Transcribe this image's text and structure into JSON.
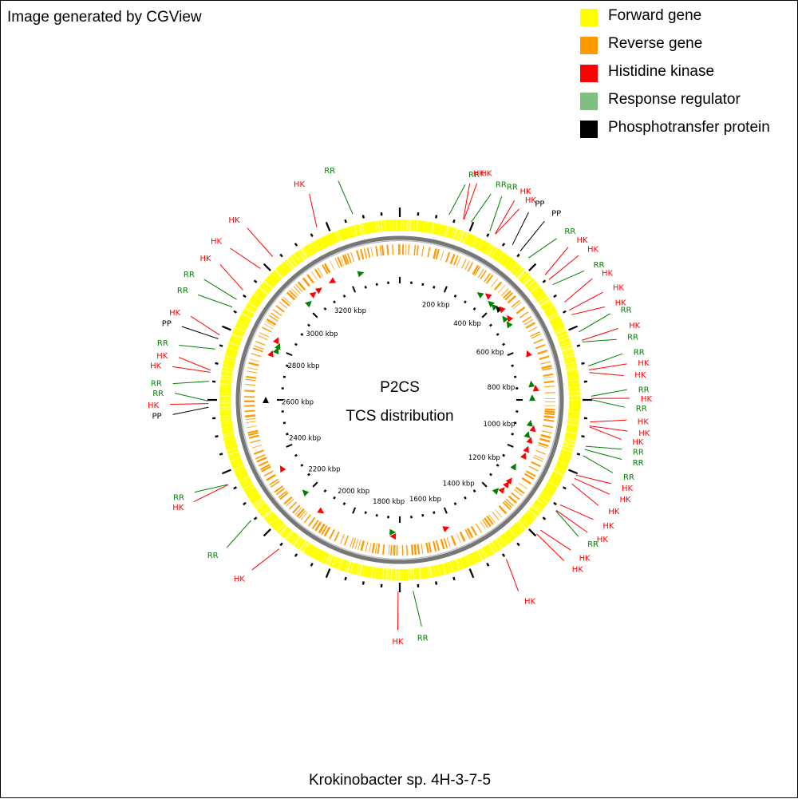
{
  "credit": "Image generated by CGView",
  "organism": "Krokinobacter sp. 4H-3-7-5",
  "center": {
    "line1": "P2CS",
    "line2": "TCS distribution"
  },
  "legend": [
    {
      "label": "Forward gene",
      "color": "#ffff00"
    },
    {
      "label": "Reverse gene",
      "color": "#ff9a00"
    },
    {
      "label": "Histidine kinase",
      "color": "#ff0000"
    },
    {
      "label": "Response regulator",
      "color": "#7fbf7f"
    },
    {
      "label": "Phosphotransfer protein",
      "color": "#000000"
    }
  ],
  "colors": {
    "HK": "#ff0000",
    "RR": "#008000",
    "PP": "#000000",
    "forward": "#ffff00",
    "reverse": "#ff9a00",
    "backbone": "#808080"
  },
  "kbp_labels": [
    "200 kbp",
    "400 kbp",
    "600 kbp",
    "800 kbp",
    "1000 kbp",
    "1200 kbp",
    "1400 kbp",
    "1600 kbp",
    "1800 kbp",
    "2000 kbp",
    "2200 kbp",
    "2400 kbp",
    "2600 kbp",
    "2800 kbp",
    "3000 kbp",
    "3200 kbp"
  ],
  "feature_labels": [
    {
      "text": "RR",
      "type": "RR",
      "angle": 16.9
    },
    {
      "text": "HK",
      "type": "HK",
      "angle": 17.9
    },
    {
      "text": "HK",
      "type": "HK",
      "angle": 19.6
    },
    {
      "text": "RR",
      "type": "RR",
      "angle": 23.9
    },
    {
      "text": "RR",
      "type": "RR",
      "angle": 26.6
    },
    {
      "text": "HK",
      "type": "HK",
      "angle": 29.9
    },
    {
      "text": "HK",
      "type": "HK",
      "angle": 32.0
    },
    {
      "text": "PP",
      "type": "PP",
      "angle": 34.5
    },
    {
      "text": "PP",
      "type": "PP",
      "angle": 39.0
    },
    {
      "text": "RR",
      "type": "RR",
      "angle": 44.2
    },
    {
      "text": "HK",
      "type": "HK",
      "angle": 47.8
    },
    {
      "text": "HK",
      "type": "HK",
      "angle": 51.1
    },
    {
      "text": "RR",
      "type": "RR",
      "angle": 55.0
    },
    {
      "text": "HK",
      "type": "HK",
      "angle": 57.8
    },
    {
      "text": "HK",
      "type": "HK",
      "angle": 62.1
    },
    {
      "text": "HK",
      "type": "HK",
      "angle": 65.6
    },
    {
      "text": "RR",
      "type": "RR",
      "angle": 67.7
    },
    {
      "text": "HK",
      "type": "HK",
      "angle": 71.9
    },
    {
      "text": "RR",
      "type": "RR",
      "angle": 74.4
    },
    {
      "text": "RR",
      "type": "RR",
      "angle": 78.3
    },
    {
      "text": "HK",
      "type": "HK",
      "angle": 81.0
    },
    {
      "text": "HK",
      "type": "HK",
      "angle": 83.8
    },
    {
      "text": "RR",
      "type": "RR",
      "angle": 87.4
    },
    {
      "text": "HK",
      "type": "HK",
      "angle": 89.6
    },
    {
      "text": "RR",
      "type": "RR",
      "angle": 91.9
    },
    {
      "text": "HK",
      "type": "HK",
      "angle": 95.1
    },
    {
      "text": "HK",
      "type": "HK",
      "angle": 97.8
    },
    {
      "text": "HK",
      "type": "HK",
      "angle": 100.1
    },
    {
      "text": "RR",
      "type": "RR",
      "angle": 102.5
    },
    {
      "text": "RR",
      "type": "RR",
      "angle": 105.0
    },
    {
      "text": "RR",
      "type": "RR",
      "angle": 108.9
    },
    {
      "text": "HK",
      "type": "HK",
      "angle": 111.6
    },
    {
      "text": "HK",
      "type": "HK",
      "angle": 114.2
    },
    {
      "text": "HK",
      "type": "HK",
      "angle": 118.0
    },
    {
      "text": "HK",
      "type": "HK",
      "angle": 121.7
    },
    {
      "text": "HK",
      "type": "HK",
      "angle": 125.2
    },
    {
      "text": "RR",
      "type": "RR",
      "angle": 127.4
    },
    {
      "text": "HK",
      "type": "HK",
      "angle": 131.3
    },
    {
      "text": "HK",
      "type": "HK",
      "angle": 134.4
    },
    {
      "text": "HK",
      "type": "HK",
      "angle": 148.2
    },
    {
      "text": "RR",
      "type": "RR",
      "angle": 174.5
    },
    {
      "text": "HK",
      "type": "HK",
      "angle": 180.5
    },
    {
      "text": "HK",
      "type": "HK",
      "angle": 221.0
    },
    {
      "text": "RR",
      "type": "RR",
      "angle": 229.5
    },
    {
      "text": "HK",
      "type": "HK",
      "angle": 243.7
    },
    {
      "text": "RR",
      "type": "RR",
      "angle": 245.8
    },
    {
      "text": "PP",
      "type": "PP",
      "angle": 266.3
    },
    {
      "text": "HK",
      "type": "HK",
      "angle": 268.9
    },
    {
      "text": "RR",
      "type": "RR",
      "angle": 271.7
    },
    {
      "text": "RR",
      "type": "RR",
      "angle": 274.1
    },
    {
      "text": "HK",
      "type": "HK",
      "angle": 278.3
    },
    {
      "text": "HK",
      "type": "HK",
      "angle": 280.9
    },
    {
      "text": "RR",
      "type": "RR",
      "angle": 283.9
    },
    {
      "text": "PP",
      "type": "PP",
      "angle": 288.6
    },
    {
      "text": "HK",
      "type": "HK",
      "angle": 291.8
    },
    {
      "text": "RR",
      "type": "RR",
      "angle": 297.5
    },
    {
      "text": "RR",
      "type": "RR",
      "angle": 301.6
    },
    {
      "text": "HK",
      "type": "HK",
      "angle": 307.0
    },
    {
      "text": "HK",
      "type": "HK",
      "angle": 311.8
    },
    {
      "text": "HK",
      "type": "HK",
      "angle": 318.4
    },
    {
      "text": "HK",
      "type": "HK",
      "angle": 336.3
    },
    {
      "text": "RR",
      "type": "RR",
      "angle": 344.3
    }
  ],
  "inner_features": [
    {
      "type": "HK",
      "angle": 330,
      "dir": "rev"
    },
    {
      "type": "RR",
      "angle": 343,
      "dir": "fwd"
    },
    {
      "type": "RR",
      "angle": 37,
      "dir": "rev"
    },
    {
      "type": "HK",
      "angle": 40,
      "dir": "rev"
    },
    {
      "type": "RR",
      "angle": 43,
      "dir": "rev"
    },
    {
      "type": "RR",
      "angle": 45,
      "dir": "rev"
    },
    {
      "type": "PP",
      "angle": 47,
      "dir": "rev"
    },
    {
      "type": "HK",
      "angle": 48,
      "dir": "rev"
    },
    {
      "type": "RR",
      "angle": 52,
      "dir": "rev"
    },
    {
      "type": "RR",
      "angle": 55,
      "dir": "rev"
    },
    {
      "type": "HK",
      "angle": 53,
      "dir": "rev"
    },
    {
      "type": "HK",
      "angle": 70,
      "dir": "rev"
    },
    {
      "type": "RR",
      "angle": 83,
      "dir": "rev"
    },
    {
      "type": "HK",
      "angle": 85,
      "dir": "rev"
    },
    {
      "type": "RR",
      "angle": 89,
      "dir": "rev"
    },
    {
      "type": "RR",
      "angle": 100,
      "dir": "rev"
    },
    {
      "type": "HK",
      "angle": 102,
      "dir": "rev"
    },
    {
      "type": "RR",
      "angle": 105,
      "dir": "rev"
    },
    {
      "type": "HK",
      "angle": 107,
      "dir": "rev"
    },
    {
      "type": "HK",
      "angle": 111,
      "dir": "rev"
    },
    {
      "type": "HK",
      "angle": 114,
      "dir": "rev"
    },
    {
      "type": "RR",
      "angle": 120,
      "dir": "rev"
    },
    {
      "type": "HK",
      "angle": 126,
      "dir": "rev"
    },
    {
      "type": "HK",
      "angle": 128,
      "dir": "rev"
    },
    {
      "type": "HK",
      "angle": 131,
      "dir": "rev"
    },
    {
      "type": "RR",
      "angle": 133,
      "dir": "rev"
    },
    {
      "type": "HK",
      "angle": 160,
      "dir": "rev"
    },
    {
      "type": "RR",
      "angle": 183,
      "dir": "rev"
    },
    {
      "type": "HK",
      "angle": 183,
      "dir": "fwd"
    },
    {
      "type": "HK",
      "angle": 215,
      "dir": "rev"
    },
    {
      "type": "RR",
      "angle": 226,
      "dir": "fwd"
    },
    {
      "type": "HK",
      "angle": 240,
      "dir": "fwd"
    },
    {
      "type": "PP",
      "angle": 270,
      "dir": "fwd"
    },
    {
      "type": "RR",
      "angle": 292,
      "dir": "fwd"
    },
    {
      "type": "HK",
      "angle": 290,
      "dir": "fwd"
    },
    {
      "type": "RR",
      "angle": 294,
      "dir": "fwd"
    },
    {
      "type": "HK",
      "angle": 296,
      "dir": "fwd"
    },
    {
      "type": "HK",
      "angle": 321,
      "dir": "fwd"
    },
    {
      "type": "HK",
      "angle": 324,
      "dir": "fwd"
    },
    {
      "type": "RR",
      "angle": 317,
      "dir": "fwd"
    }
  ]
}
